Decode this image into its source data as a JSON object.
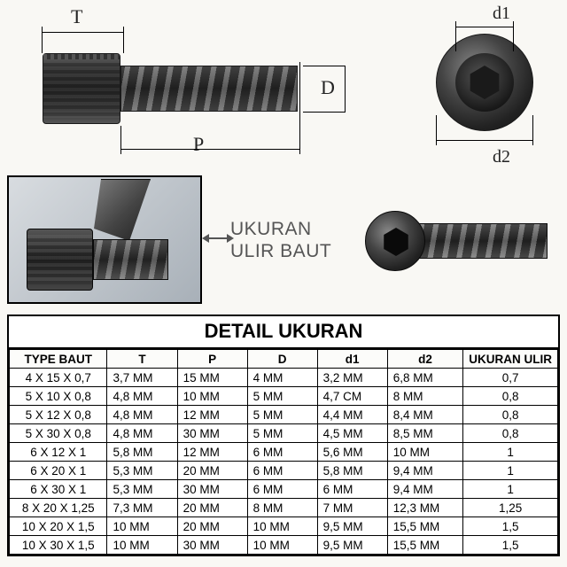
{
  "diagram": {
    "labels": {
      "T": "T",
      "P": "P",
      "D": "D",
      "d1": "d1",
      "d2": "d2"
    },
    "ukuran_line1": "UKURAN",
    "ukuran_line2": "ULIR BAUT"
  },
  "table": {
    "title": "DETAIL UKURAN",
    "columns": [
      "TYPE BAUT",
      "T",
      "P",
      "D",
      "d1",
      "d2",
      "UKURAN ULIR"
    ],
    "rows": [
      [
        "4 X 15 X 0,7",
        "3,7 MM",
        "15 MM",
        "4 MM",
        "3,2 MM",
        "6,8 MM",
        "0,7"
      ],
      [
        "5 X 10 X 0,8",
        "4,8 MM",
        "10 MM",
        "5 MM",
        "4,7 CM",
        "8 MM",
        "0,8"
      ],
      [
        "5 X 12 X 0,8",
        "4,8 MM",
        "12 MM",
        "5 MM",
        "4,4 MM",
        "8,4 MM",
        "0,8"
      ],
      [
        "5 X 30 X 0,8",
        "4,8 MM",
        "30 MM",
        "5 MM",
        "4,5 MM",
        "8,5 MM",
        "0,8"
      ],
      [
        "6 X 12 X 1",
        "5,8 MM",
        "12 MM",
        "6 MM",
        "5,6 MM",
        "10 MM",
        "1"
      ],
      [
        "6 X 20 X 1",
        "5,3 MM",
        "20 MM",
        "6 MM",
        "5,8 MM",
        "9,4 MM",
        "1"
      ],
      [
        "6 X 30 X 1",
        "5,3 MM",
        "30 MM",
        "6 MM",
        "6 MM",
        "9,4 MM",
        "1"
      ],
      [
        "8 X 20 X 1,25",
        "7,3 MM",
        "20 MM",
        "8 MM",
        "7 MM",
        "12,3 MM",
        "1,25"
      ],
      [
        "10 X 20 X 1,5",
        "10 MM",
        "20 MM",
        "10 MM",
        "9,5 MM",
        "15,5 MM",
        "1,5"
      ],
      [
        "10 X 30 X 1,5",
        "10 MM",
        "30 MM",
        "10 MM",
        "9,5 MM",
        "15,5 MM",
        "1,5"
      ]
    ]
  },
  "style": {
    "bg": "#f9f8f4",
    "border": "#000000",
    "text": "#222222",
    "title_fontsize": 22,
    "cell_fontsize": 13.5,
    "label_fontsize": 22,
    "font": "Arial"
  }
}
